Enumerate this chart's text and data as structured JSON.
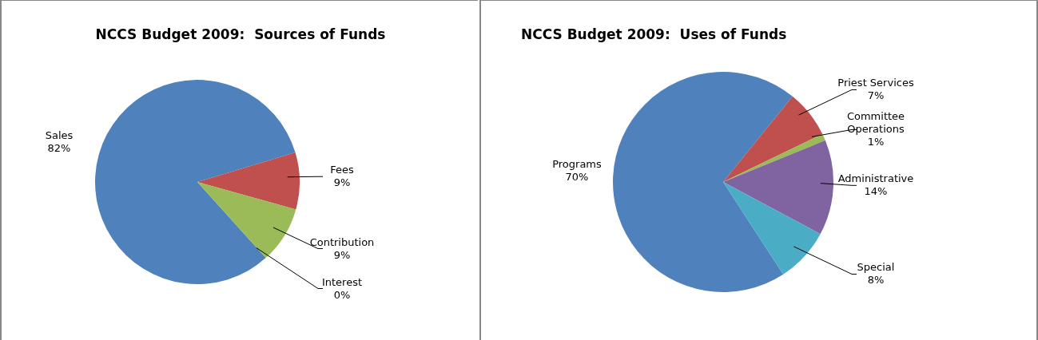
{
  "chart_data": [
    {
      "type": "pie",
      "title": "NCCS Budget 2009:  Sources of Funds",
      "categories": [
        "Sales",
        "Fees",
        "Contribution",
        "Interest"
      ],
      "values": [
        82,
        9,
        9,
        0
      ],
      "value_labels": [
        "82%",
        "9%",
        "9%",
        "0%"
      ],
      "colors": [
        "#4f81bd",
        "#c0504d",
        "#9bbb59",
        "#8064a2"
      ]
    },
    {
      "type": "pie",
      "title": "NCCS Budget 2009:  Uses of Funds",
      "categories": [
        "Programs",
        "Priest Services",
        "Committee Operations",
        "Administrative",
        "Special"
      ],
      "values": [
        70,
        7,
        1,
        14,
        8
      ],
      "value_labels": [
        "70%",
        "7%",
        "1%",
        "14%",
        "8%"
      ],
      "colors": [
        "#4f81bd",
        "#c0504d",
        "#9bbb59",
        "#8064a2",
        "#4bacc6"
      ]
    }
  ]
}
